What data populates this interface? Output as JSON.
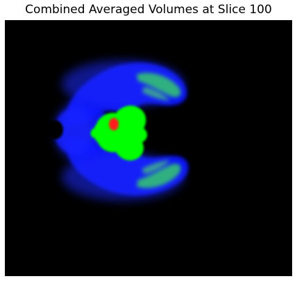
{
  "title": "Combined Averaged Volumes at Slice 100",
  "image": {
    "background": "#000000",
    "channels": {
      "outer": "#0000ff",
      "middle": "#00ff00",
      "inner": "#ff0000"
    }
  }
}
